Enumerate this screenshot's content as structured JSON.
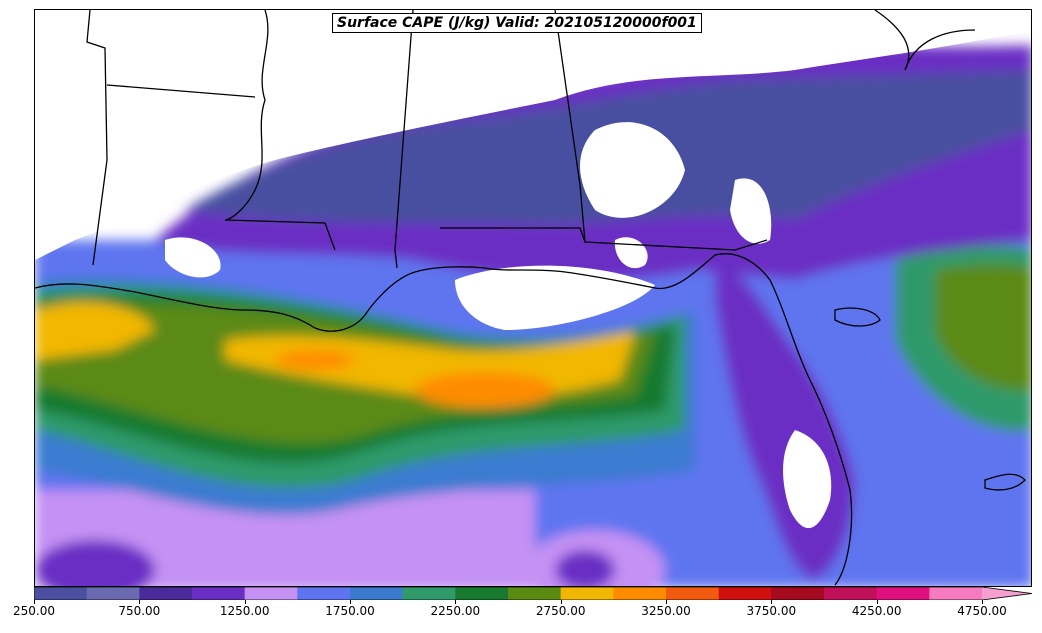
{
  "title": "Surface CAPE (J/kg) Valid: 202105120000f001",
  "colorbar": {
    "levels": [
      250,
      500,
      750,
      1000,
      1250,
      1500,
      1750,
      2000,
      2250,
      2500,
      2750,
      3000,
      3250,
      3500,
      3750,
      4000,
      4250,
      4500,
      4750,
      5000
    ],
    "colors": [
      "#4a4fa0",
      "#6a6ab0",
      "#4b2b9a",
      "#6b2ec4",
      "#c591f4",
      "#5f74f0",
      "#3a7bd0",
      "#2f9a6a",
      "#177a2e",
      "#5b8a12",
      "#f2b705",
      "#ff8c00",
      "#f25a10",
      "#d0100e",
      "#a50a1e",
      "#c0105a",
      "#e0107f",
      "#f57ac0"
    ],
    "extend_color": "#f5a0d0",
    "tick_labels": [
      "250.00",
      "750.00",
      "1250.00",
      "1750.00",
      "2250.00",
      "2750.00",
      "3250.00",
      "3750.00",
      "4250.00",
      "4750.00"
    ]
  },
  "map": {
    "region": "US Gulf Coast / Gulf of Mexico",
    "field": "Surface CAPE",
    "units": "J/kg",
    "background_color": "#ffffff",
    "border_color": "#000000"
  }
}
